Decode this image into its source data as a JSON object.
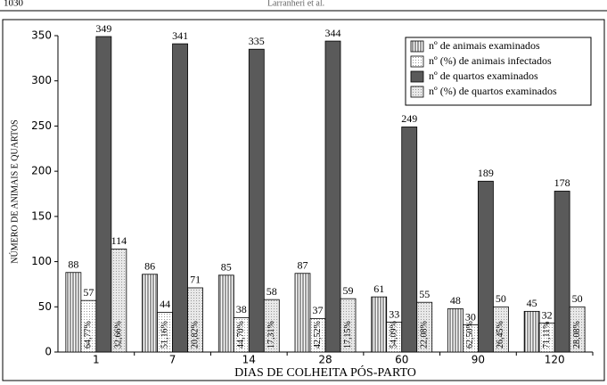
{
  "page_header": {
    "number": "1030",
    "authors": "Larranheri et al."
  },
  "chart_data": {
    "type": "bar",
    "x_label": "DIAS  DE  COLHEITA  PÓS-PARTO",
    "y_label": "NÚMERO DE ANIMAIS E QUARTOS",
    "categories": [
      "1",
      "7",
      "14",
      "28",
      "60",
      "90",
      "120"
    ],
    "series": [
      {
        "name": "nº de animais examinados",
        "color": "#ffffff",
        "pattern": "vertical-stripes",
        "values": [
          88,
          86,
          85,
          87,
          61,
          48,
          45
        ]
      },
      {
        "name": "nº (%) de animais infectados",
        "color": "#ffffff",
        "pattern": "dots",
        "values": [
          57,
          44,
          38,
          37,
          33,
          30,
          32
        ],
        "inner_labels": [
          "64,77%",
          "51,16%",
          "44,70%",
          "42,52%",
          "54,09%",
          "62,50%",
          "71,11%"
        ]
      },
      {
        "name": "nº de quartos examinados",
        "color": "#5a5a5a",
        "pattern": "solid",
        "values": [
          349,
          341,
          335,
          344,
          249,
          189,
          178
        ]
      },
      {
        "name": "nº (%) de quartos examinados",
        "color": "#e8e8e8",
        "pattern": "dots",
        "values": [
          114,
          71,
          58,
          59,
          55,
          50,
          50
        ],
        "inner_labels": [
          "32,66%",
          "20,82%",
          "17,31%",
          "17,15%",
          "22,08%",
          "26,45%",
          "28,08%"
        ]
      }
    ],
    "ylim": [
      0,
      350
    ],
    "yticks": [
      0,
      50,
      100,
      150,
      200,
      250,
      300,
      350
    ],
    "legend": "top-right",
    "grid": false
  }
}
